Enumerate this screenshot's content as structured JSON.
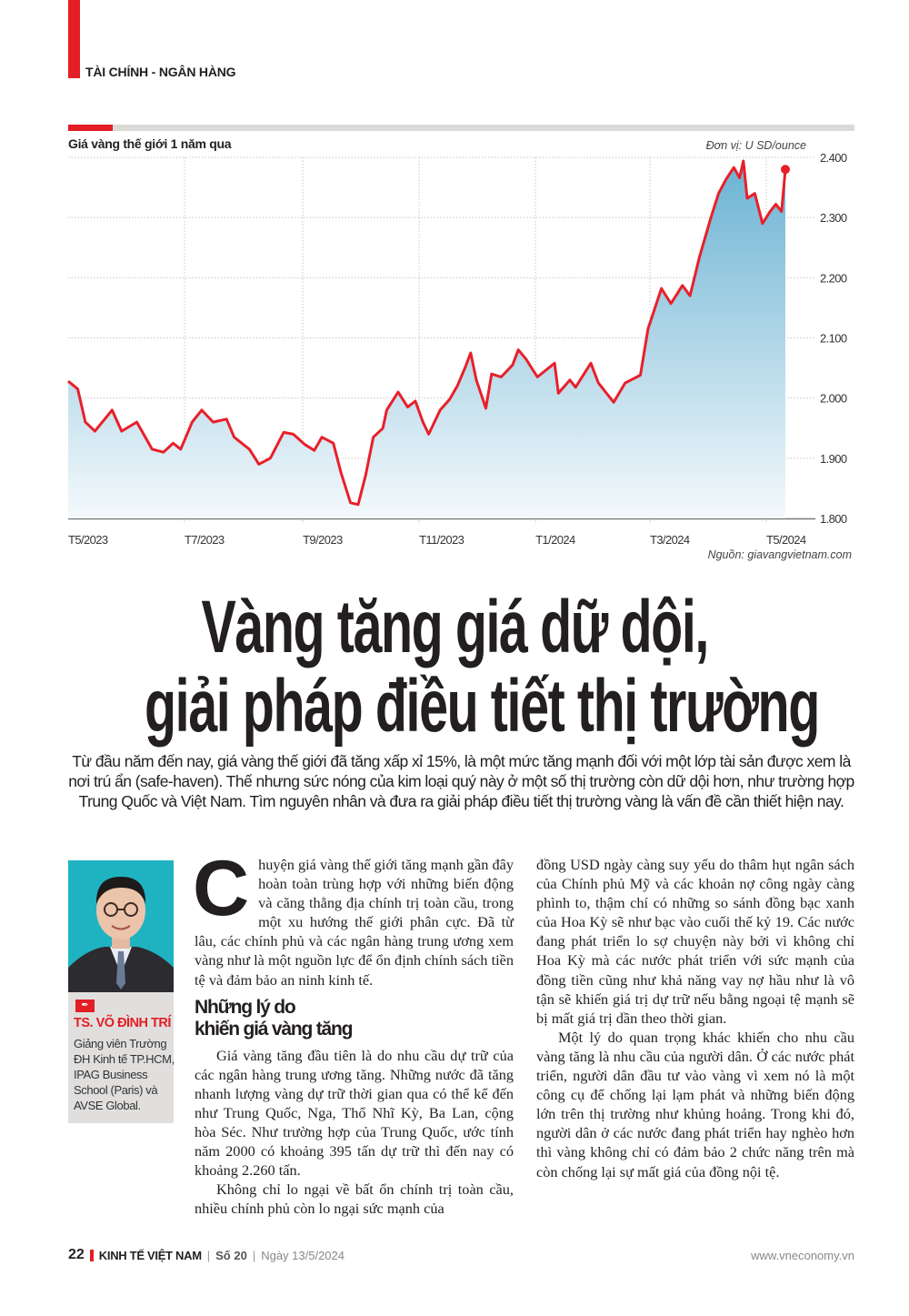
{
  "section": {
    "label": "TÀI CHÍNH - NGÂN HÀNG",
    "accent_color": "#e31e24"
  },
  "chart_data": {
    "type": "area",
    "title": "Giá vàng thế giới 1 năm qua",
    "unit": "Đơn vị: U SD/ounce",
    "source": "Nguồn: giavangvietnam.com",
    "ylim": [
      1800,
      2400
    ],
    "yticks": [
      "2.400",
      "2.300",
      "2.200",
      "2.100",
      "2.000",
      "1.900",
      "1.800"
    ],
    "ytick_values": [
      2400,
      2300,
      2200,
      2100,
      2000,
      1900,
      1800
    ],
    "xticks": [
      "T5/2023",
      "T7/2023",
      "T9/2023",
      "T11/2023",
      "T1/2024",
      "T3/2024",
      "T5/2024"
    ],
    "xtick_dates": [
      "2023-05-01",
      "2023-07-01",
      "2023-09-01",
      "2023-11-01",
      "2024-01-01",
      "2024-03-01",
      "2024-05-01"
    ],
    "xlim": [
      "2023-05-01",
      "2024-05-13"
    ],
    "grid": true,
    "line_color": "#e8202a",
    "fill_color_top": "#6bb3d3",
    "fill_color_bottom": "#f4f9fc",
    "series": [
      {
        "x": [
          "2023-05-01",
          "2023-05-06",
          "2023-05-10",
          "2023-05-15",
          "2023-05-24",
          "2023-05-29",
          "2023-06-06",
          "2023-06-14",
          "2023-06-20",
          "2023-06-25",
          "2023-06-29",
          "2023-07-05",
          "2023-07-10",
          "2023-07-16",
          "2023-07-23",
          "2023-07-27",
          "2023-08-04",
          "2023-08-09",
          "2023-08-15",
          "2023-08-22",
          "2023-08-27",
          "2023-09-02",
          "2023-09-07",
          "2023-09-11",
          "2023-09-17",
          "2023-09-21",
          "2023-09-26",
          "2023-09-30",
          "2023-10-04",
          "2023-10-08",
          "2023-10-13",
          "2023-10-15",
          "2023-10-21",
          "2023-10-26",
          "2023-10-30",
          "2023-11-03",
          "2023-11-06",
          "2023-11-12",
          "2023-11-17",
          "2023-11-21",
          "2023-11-25",
          "2023-11-28",
          "2023-12-01",
          "2023-12-06",
          "2023-12-09",
          "2023-12-14",
          "2023-12-20",
          "2023-12-23",
          "2023-12-27",
          "2024-01-02",
          "2024-01-11",
          "2024-01-13",
          "2024-01-19",
          "2024-01-22",
          "2024-01-30",
          "2024-02-03",
          "2024-02-11",
          "2024-02-17",
          "2024-02-25",
          "2024-02-29",
          "2024-03-07",
          "2024-03-12",
          "2024-03-18",
          "2024-03-22",
          "2024-03-27",
          "2024-04-02",
          "2024-04-06",
          "2024-04-10",
          "2024-04-14",
          "2024-04-17",
          "2024-04-19",
          "2024-04-21",
          "2024-04-25",
          "2024-04-29",
          "2024-05-03",
          "2024-05-06",
          "2024-05-09",
          "2024-05-11"
        ],
        "y": [
          2028,
          2015,
          1960,
          1945,
          1980,
          1945,
          1960,
          1915,
          1910,
          1925,
          1915,
          1960,
          1980,
          1960,
          1965,
          1935,
          1915,
          1890,
          1900,
          1943,
          1940,
          1923,
          1913,
          1935,
          1925,
          1876,
          1826,
          1823,
          1872,
          1935,
          1950,
          1980,
          2010,
          1985,
          1995,
          1960,
          1940,
          1980,
          1998,
          2020,
          2050,
          2075,
          2030,
          1983,
          2040,
          2035,
          2055,
          2080,
          2065,
          2035,
          2058,
          2008,
          2030,
          2018,
          2058,
          2025,
          1993,
          2025,
          2038,
          2115,
          2182,
          2157,
          2187,
          2170,
          2235,
          2300,
          2340,
          2364,
          2383,
          2366,
          2394,
          2332,
          2340,
          2290,
          2310,
          2322,
          2310,
          2380
        ]
      }
    ]
  },
  "article": {
    "headline_line1": "Vàng tăng giá dữ dội,",
    "headline_line2": "giải pháp điều tiết thị trường",
    "lead": "Từ đầu năm đến nay, giá vàng thế giới đã tăng xấp xỉ 15%, là một mức tăng mạnh đối với một lớp tài sản được xem là nơi trú ẩn (safe-haven). Thế nhưng sức nóng của kim loại quý này ở một số thị trường còn dữ dội hơn, như trường hợp Trung Quốc và Việt Nam. Tìm nguyên nhân và đưa ra giải pháp điều tiết thị trường vàng là vấn đề cần thiết hiện nay.",
    "author": {
      "name": "TS. VÕ ĐÌNH TRÍ",
      "role": "Giảng viên Trường ĐH Kinh tế TP.HCM, IPAG Business School (Paris) và AVSE Global.",
      "icon": "pen-nib-icon"
    },
    "drop_cap": "C",
    "p1": "huyện giá vàng thế giới tăng mạnh gần đây hoàn toàn trùng hợp với những biến động và căng thẳng địa chính trị toàn cầu, trong một xu hướng thế giới phân cực. Đã từ lâu, các chính phủ và các ngân hàng trung ương xem vàng như là một nguồn lực để ổn định chính sách tiền tệ và đảm bảo an ninh kinh tế.",
    "subhead_line1": "Những lý do",
    "subhead_line2": "khiến giá vàng tăng",
    "p2": "Giá vàng tăng đầu tiên là do nhu cầu dự trữ của các ngân hàng trung ương tăng. Những nước đã tăng nhanh lượng vàng dự trữ thời gian qua có thể kể đến như Trung Quốc, Nga, Thổ Nhĩ Kỳ, Ba Lan, cộng hòa Séc. Như trường hợp của Trung Quốc, ước tính năm 2000 có khoảng 395 tấn dự trữ thì đến nay có khoảng 2.260 tấn.",
    "p3a": "Không chỉ lo ngại về bất ổn chính trị toàn cầu, nhiều chính phủ còn lo ngại sức mạnh của",
    "p3b": "đồng USD ngày càng suy yếu do thâm hụt ngân sách của Chính phủ Mỹ và các khoản nợ công ngày càng phình to, thậm chí có những so sánh đồng bạc xanh của Hoa Kỳ sẽ như bạc vào cuối thế kỷ 19. Các nước đang phát triển lo sợ chuyện này bởi vì không chỉ Hoa Kỳ mà các nước phát triển với sức mạnh của đồng tiền cũng như khả năng vay nợ hầu như là vô tận sẽ khiến giá trị dự trữ nếu bằng ngoại tệ mạnh sẽ bị mất giá trị dần theo thời gian.",
    "p4": "Một lý do quan trọng khác khiến cho nhu cầu vàng tăng là nhu cầu của người dân. Ở các nước phát triển, người dân đầu tư vào vàng vì xem nó là một công cụ để chống lại lạm phát và những biến động lớn trên thị trường như khủng hoảng. Trong khi đó, người dân ở các nước đang phát triển hay nghèo hơn thì vàng không chỉ có đảm bảo 2 chức năng trên mà còn chống lại sự mất giá của đồng nội tệ."
  },
  "footer": {
    "page_number": "22",
    "magazine": "KINH TẾ VIỆT NAM",
    "issue": "Số 20",
    "date": "Ngày 13/5/2024",
    "website": "www.vneconomy.vn"
  }
}
